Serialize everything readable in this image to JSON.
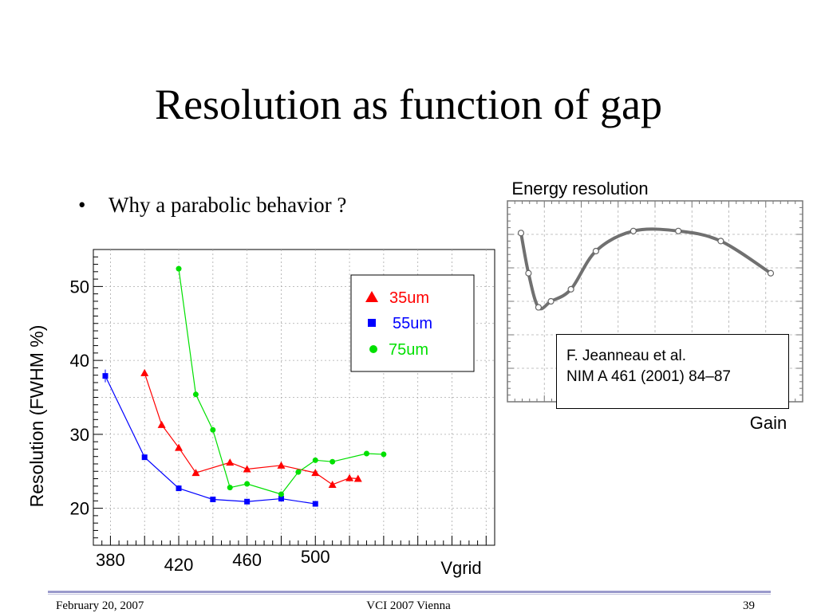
{
  "slide": {
    "title": "Resolution as function of gap",
    "bullet": "Why a parabolic behavior ?"
  },
  "footer": {
    "date": "February 20, 2007",
    "event": "VCI 2007 Vienna",
    "page": "39"
  },
  "chart_data": [
    {
      "type": "line",
      "xlabel": "Vgrid",
      "ylabel": "Resolution (FWHM %)",
      "xlim": [
        370,
        605
      ],
      "ylim": [
        15,
        55
      ],
      "x_ticks": [
        "380",
        "420",
        "460",
        "500"
      ],
      "y_ticks": [
        "20",
        "30",
        "40",
        "50"
      ],
      "grid": true,
      "legend_position": "top-right",
      "series": [
        {
          "name": "35um",
          "color": "#ff0000",
          "marker": "triangle",
          "x": [
            400,
            410,
            420,
            430,
            450,
            460,
            480,
            500,
            510,
            520,
            525
          ],
          "y": [
            38.3,
            31.3,
            28.2,
            24.8,
            26.2,
            25.3,
            25.8,
            24.8,
            23.2,
            24.1,
            24.0
          ]
        },
        {
          "name": "55um",
          "color": "#0000ff",
          "marker": "square",
          "x": [
            377,
            400,
            420,
            440,
            460,
            480,
            500
          ],
          "y": [
            37.9,
            26.9,
            22.7,
            21.2,
            20.9,
            21.3,
            20.6
          ]
        },
        {
          "name": "75um",
          "color": "#00e000",
          "marker": "circle",
          "x": [
            420,
            430,
            440,
            450,
            460,
            480,
            490,
            500,
            510,
            530,
            540
          ],
          "y": [
            52.4,
            35.4,
            30.6,
            22.8,
            23.3,
            21.9,
            24.9,
            26.5,
            26.3,
            27.4,
            27.3
          ]
        }
      ]
    },
    {
      "type": "line",
      "title": "Energy resolution",
      "xlabel": "Gain",
      "ylabel": "",
      "grid": true,
      "series": [
        {
          "x": [
            0.0,
            0.03,
            0.07,
            0.12,
            0.2,
            0.3,
            0.45,
            0.63,
            0.8,
            1.0
          ],
          "y": [
            0.84,
            0.64,
            0.47,
            0.5,
            0.56,
            0.75,
            0.85,
            0.85,
            0.8,
            0.64
          ]
        }
      ],
      "annotation": {
        "line1": "F. Jeanneau et al.",
        "line2": "NIM A 461 (2001) 84–87"
      }
    }
  ]
}
